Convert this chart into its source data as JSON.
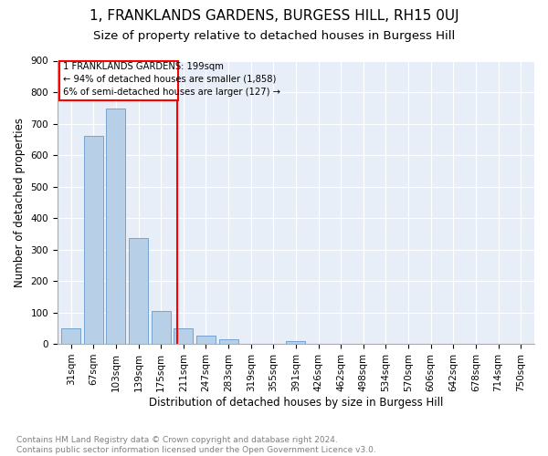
{
  "title": "1, FRANKLANDS GARDENS, BURGESS HILL, RH15 0UJ",
  "subtitle": "Size of property relative to detached houses in Burgess Hill",
  "xlabel": "Distribution of detached houses by size in Burgess Hill",
  "ylabel": "Number of detached properties",
  "footnote": "Contains HM Land Registry data © Crown copyright and database right 2024.\nContains public sector information licensed under the Open Government Licence v3.0.",
  "bar_labels": [
    "31sqm",
    "67sqm",
    "103sqm",
    "139sqm",
    "175sqm",
    "211sqm",
    "247sqm",
    "283sqm",
    "319sqm",
    "355sqm",
    "391sqm",
    "426sqm",
    "462sqm",
    "498sqm",
    "534sqm",
    "570sqm",
    "606sqm",
    "642sqm",
    "678sqm",
    "714sqm",
    "750sqm"
  ],
  "bar_values": [
    50,
    660,
    748,
    335,
    105,
    50,
    25,
    15,
    0,
    0,
    10,
    0,
    0,
    0,
    0,
    0,
    0,
    0,
    0,
    0,
    0
  ],
  "bar_color": "#b8cfe8",
  "bar_edge_color": "#6699cc",
  "vline_x": 4.72,
  "vline_color": "red",
  "annotation_text": "1 FRANKLANDS GARDENS: 199sqm\n← 94% of detached houses are smaller (1,858)\n6% of semi-detached houses are larger (127) →",
  "annotation_box_color": "red",
  "annotation_text_color": "black",
  "ylim": [
    0,
    900
  ],
  "yticks": [
    0,
    100,
    200,
    300,
    400,
    500,
    600,
    700,
    800,
    900
  ],
  "plot_bg_color": "#e8eef8",
  "title_fontsize": 11,
  "subtitle_fontsize": 9.5,
  "axis_label_fontsize": 8.5,
  "tick_fontsize": 7.5,
  "footnote_fontsize": 6.5
}
